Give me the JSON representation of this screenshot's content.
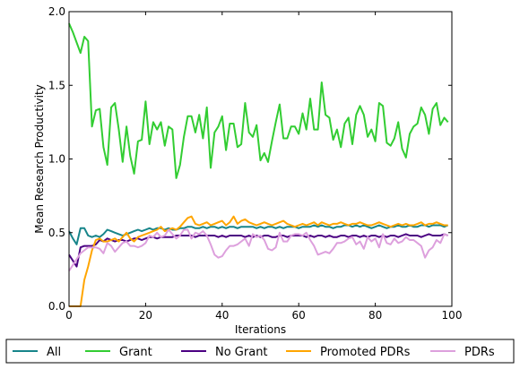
{
  "chart_data": {
    "type": "line",
    "title": "",
    "xlabel": "Iterations",
    "ylabel": "Mean Research Productivity",
    "xlim": [
      0,
      100
    ],
    "ylim": [
      0.0,
      2.0
    ],
    "x_ticks": [
      0,
      20,
      40,
      60,
      80,
      100
    ],
    "x_tick_labels": [
      "0",
      "20",
      "40",
      "60",
      "80",
      "100"
    ],
    "y_ticks": [
      0.0,
      0.5,
      1.0,
      1.5,
      2.0
    ],
    "y_tick_labels": [
      "0.0",
      "0.5",
      "1.0",
      "1.5",
      "2.0"
    ],
    "grid": false,
    "legend_placement": "bottom",
    "x": [
      0,
      1,
      2,
      3,
      4,
      5,
      6,
      7,
      8,
      9,
      10,
      11,
      12,
      13,
      14,
      15,
      16,
      17,
      18,
      19,
      20,
      21,
      22,
      23,
      24,
      25,
      26,
      27,
      28,
      29,
      30,
      31,
      32,
      33,
      34,
      35,
      36,
      37,
      38,
      39,
      40,
      41,
      42,
      43,
      44,
      45,
      46,
      47,
      48,
      49,
      50,
      51,
      52,
      53,
      54,
      55,
      56,
      57,
      58,
      59,
      60,
      61,
      62,
      63,
      64,
      65,
      66,
      67,
      68,
      69,
      70,
      71,
      72,
      73,
      74,
      75,
      76,
      77,
      78,
      79,
      80,
      81,
      82,
      83,
      84,
      85,
      86,
      87,
      88,
      89,
      90,
      91,
      92,
      93,
      94,
      95,
      96,
      97,
      98,
      99
    ],
    "series": [
      {
        "name": "All",
        "color": "#17858a",
        "values": [
          0.51,
          0.46,
          0.42,
          0.53,
          0.53,
          0.48,
          0.47,
          0.48,
          0.47,
          0.49,
          0.52,
          0.51,
          0.5,
          0.49,
          0.48,
          0.49,
          0.5,
          0.51,
          0.52,
          0.51,
          0.52,
          0.53,
          0.52,
          0.53,
          0.53,
          0.52,
          0.53,
          0.52,
          0.52,
          0.53,
          0.53,
          0.54,
          0.54,
          0.53,
          0.53,
          0.54,
          0.53,
          0.54,
          0.54,
          0.53,
          0.54,
          0.53,
          0.54,
          0.54,
          0.53,
          0.54,
          0.54,
          0.54,
          0.54,
          0.53,
          0.54,
          0.53,
          0.54,
          0.54,
          0.53,
          0.54,
          0.53,
          0.54,
          0.54,
          0.54,
          0.53,
          0.54,
          0.54,
          0.54,
          0.55,
          0.54,
          0.55,
          0.54,
          0.54,
          0.53,
          0.54,
          0.54,
          0.55,
          0.55,
          0.54,
          0.55,
          0.54,
          0.55,
          0.54,
          0.53,
          0.54,
          0.55,
          0.54,
          0.53,
          0.54,
          0.54,
          0.55,
          0.54,
          0.54,
          0.55,
          0.54,
          0.54,
          0.55,
          0.55,
          0.54,
          0.55,
          0.55,
          0.55,
          0.54,
          0.55
        ]
      },
      {
        "name": "Grant",
        "color": "#32cd32",
        "values": [
          1.92,
          1.86,
          1.79,
          1.72,
          1.83,
          1.8,
          1.22,
          1.33,
          1.34,
          1.08,
          0.96,
          1.35,
          1.38,
          1.2,
          0.98,
          1.22,
          1.02,
          0.9,
          1.12,
          1.13,
          1.39,
          1.1,
          1.25,
          1.2,
          1.25,
          1.09,
          1.22,
          1.2,
          0.87,
          0.96,
          1.15,
          1.29,
          1.29,
          1.18,
          1.3,
          1.14,
          1.35,
          0.94,
          1.18,
          1.22,
          1.29,
          1.06,
          1.24,
          1.24,
          1.08,
          1.1,
          1.38,
          1.18,
          1.15,
          1.23,
          0.99,
          1.04,
          0.98,
          1.12,
          1.25,
          1.37,
          1.14,
          1.14,
          1.22,
          1.22,
          1.17,
          1.31,
          1.2,
          1.41,
          1.2,
          1.2,
          1.52,
          1.3,
          1.28,
          1.13,
          1.2,
          1.08,
          1.24,
          1.28,
          1.1,
          1.3,
          1.36,
          1.3,
          1.15,
          1.2,
          1.12,
          1.38,
          1.36,
          1.11,
          1.09,
          1.14,
          1.25,
          1.07,
          1.01,
          1.17,
          1.22,
          1.24,
          1.35,
          1.3,
          1.17,
          1.34,
          1.38,
          1.23,
          1.28,
          1.25
        ]
      },
      {
        "name": "No Grant",
        "color": "#4b0082",
        "values": [
          0.35,
          0.31,
          0.27,
          0.4,
          0.41,
          0.41,
          0.41,
          0.42,
          0.45,
          0.44,
          0.46,
          0.45,
          0.44,
          0.45,
          0.45,
          0.44,
          0.45,
          0.46,
          0.46,
          0.45,
          0.46,
          0.47,
          0.47,
          0.46,
          0.47,
          0.47,
          0.47,
          0.47,
          0.48,
          0.48,
          0.48,
          0.48,
          0.48,
          0.47,
          0.48,
          0.48,
          0.48,
          0.48,
          0.48,
          0.47,
          0.48,
          0.47,
          0.48,
          0.48,
          0.48,
          0.48,
          0.47,
          0.48,
          0.47,
          0.48,
          0.47,
          0.48,
          0.48,
          0.47,
          0.47,
          0.48,
          0.48,
          0.47,
          0.48,
          0.48,
          0.48,
          0.48,
          0.47,
          0.48,
          0.47,
          0.48,
          0.48,
          0.47,
          0.48,
          0.47,
          0.47,
          0.48,
          0.48,
          0.47,
          0.48,
          0.48,
          0.47,
          0.48,
          0.47,
          0.48,
          0.48,
          0.47,
          0.48,
          0.47,
          0.48,
          0.48,
          0.47,
          0.48,
          0.49,
          0.48,
          0.48,
          0.48,
          0.47,
          0.48,
          0.49,
          0.48,
          0.48,
          0.48,
          0.49,
          0.48
        ]
      },
      {
        "name": "Promoted PDRs",
        "color": "#ffa500",
        "values": [
          0.0,
          0.0,
          0.0,
          0.0,
          0.18,
          0.27,
          0.38,
          0.45,
          0.46,
          0.44,
          0.44,
          0.45,
          0.46,
          0.44,
          0.47,
          0.5,
          0.46,
          0.44,
          0.47,
          0.48,
          0.49,
          0.5,
          0.51,
          0.52,
          0.54,
          0.51,
          0.52,
          0.53,
          0.52,
          0.54,
          0.57,
          0.6,
          0.61,
          0.56,
          0.55,
          0.56,
          0.57,
          0.55,
          0.56,
          0.57,
          0.58,
          0.55,
          0.57,
          0.61,
          0.56,
          0.58,
          0.59,
          0.57,
          0.56,
          0.55,
          0.56,
          0.57,
          0.56,
          0.55,
          0.56,
          0.57,
          0.58,
          0.56,
          0.55,
          0.54,
          0.55,
          0.56,
          0.55,
          0.56,
          0.57,
          0.55,
          0.57,
          0.56,
          0.55,
          0.56,
          0.56,
          0.57,
          0.56,
          0.55,
          0.56,
          0.56,
          0.57,
          0.56,
          0.55,
          0.55,
          0.56,
          0.57,
          0.56,
          0.55,
          0.54,
          0.55,
          0.56,
          0.55,
          0.56,
          0.55,
          0.55,
          0.56,
          0.57,
          0.55,
          0.56,
          0.56,
          0.57,
          0.56,
          0.55,
          0.55
        ]
      },
      {
        "name": "PDRs",
        "color": "#dda0dd",
        "values": [
          0.24,
          0.28,
          0.32,
          0.36,
          0.38,
          0.4,
          0.4,
          0.4,
          0.39,
          0.36,
          0.43,
          0.41,
          0.37,
          0.4,
          0.43,
          0.44,
          0.41,
          0.41,
          0.4,
          0.41,
          0.43,
          0.48,
          0.47,
          0.5,
          0.47,
          0.48,
          0.52,
          0.49,
          0.46,
          0.48,
          0.52,
          0.52,
          0.46,
          0.5,
          0.49,
          0.51,
          0.48,
          0.42,
          0.35,
          0.33,
          0.34,
          0.38,
          0.41,
          0.41,
          0.42,
          0.44,
          0.46,
          0.41,
          0.49,
          0.47,
          0.48,
          0.45,
          0.39,
          0.38,
          0.4,
          0.5,
          0.44,
          0.44,
          0.48,
          0.49,
          0.49,
          0.48,
          0.5,
          0.45,
          0.41,
          0.35,
          0.36,
          0.37,
          0.36,
          0.39,
          0.43,
          0.43,
          0.44,
          0.46,
          0.47,
          0.42,
          0.44,
          0.39,
          0.47,
          0.44,
          0.46,
          0.4,
          0.49,
          0.43,
          0.42,
          0.46,
          0.43,
          0.44,
          0.47,
          0.45,
          0.45,
          0.43,
          0.41,
          0.33,
          0.38,
          0.4,
          0.45,
          0.43,
          0.49,
          0.48
        ]
      }
    ]
  }
}
